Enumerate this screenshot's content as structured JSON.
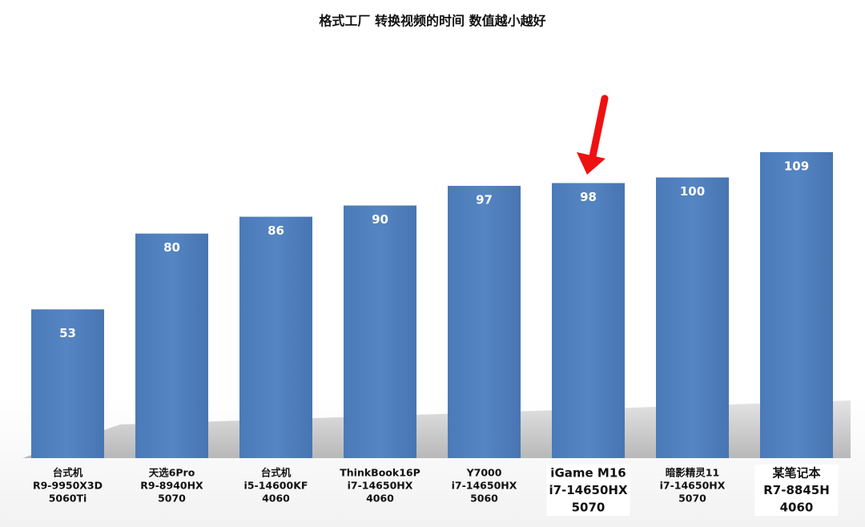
{
  "chart_data": {
    "type": "bar",
    "title": "格式工厂 转换视频的时间 数值越小越好",
    "categories": [
      [
        "台式机",
        "R9-9950X3D",
        "5060Ti"
      ],
      [
        "天选6Pro",
        "R9-8940HX",
        "5070"
      ],
      [
        "台式机",
        "i5-14600KF",
        "4060"
      ],
      [
        "ThinkBook16P",
        "i7-14650HX",
        "4060"
      ],
      [
        "Y7000",
        "i7-14650HX",
        "5060"
      ],
      [
        "iGame M16",
        "i7-14650HX",
        "5070"
      ],
      [
        "暗影精灵11",
        "i7-14650HX",
        "5070"
      ],
      [
        "某笔记本",
        "R7-8845H",
        "4060"
      ]
    ],
    "values": [
      53,
      80,
      86,
      90,
      97,
      98,
      100,
      109
    ],
    "color": "#4f81bd",
    "highlight": [
      5,
      7
    ]
  }
}
